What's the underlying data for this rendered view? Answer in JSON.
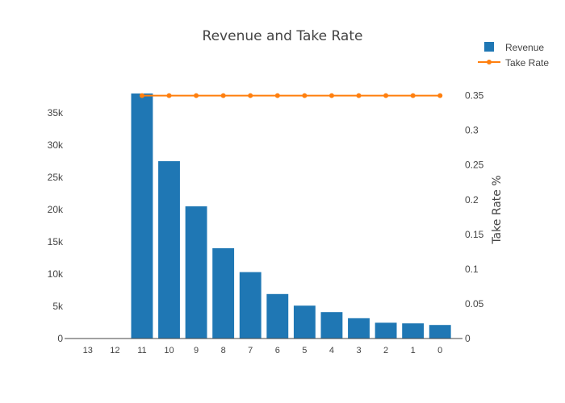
{
  "chart_data": {
    "type": "bar",
    "title": "Revenue and Take Rate",
    "categories": [
      "13",
      "12",
      "11",
      "10",
      "9",
      "8",
      "7",
      "6",
      "5",
      "4",
      "3",
      "2",
      "1",
      "0"
    ],
    "series": [
      {
        "name": "Revenue",
        "type": "bar",
        "axis": "left",
        "color": "#1f77b4",
        "values": [
          0,
          0,
          38000,
          27500,
          20500,
          14000,
          10300,
          6900,
          5100,
          4100,
          3150,
          2450,
          2350,
          2100
        ]
      },
      {
        "name": "Take Rate",
        "type": "line",
        "axis": "right",
        "color": "#ff7f0e",
        "values": [
          null,
          null,
          0.35,
          0.35,
          0.35,
          0.35,
          0.35,
          0.35,
          0.35,
          0.35,
          0.35,
          0.35,
          0.35,
          0.35
        ]
      }
    ],
    "y_left": {
      "label": "",
      "ylim": [
        0,
        38000
      ],
      "ticks": [
        0,
        5000,
        10000,
        15000,
        20000,
        25000,
        30000,
        35000
      ],
      "tick_labels": [
        "0",
        "5k",
        "10k",
        "15k",
        "20k",
        "25k",
        "30k",
        "35k"
      ]
    },
    "y_right": {
      "label": "Take Rate %",
      "ylim": [
        0,
        0.353
      ],
      "ticks": [
        0,
        0.05,
        0.1,
        0.15,
        0.2,
        0.25,
        0.3,
        0.35
      ],
      "tick_labels": [
        "0",
        "0.05",
        "0.1",
        "0.15",
        "0.2",
        "0.25",
        "0.3",
        "0.35"
      ]
    },
    "xlabel": "",
    "grid": false,
    "legend_position": "top-right"
  }
}
